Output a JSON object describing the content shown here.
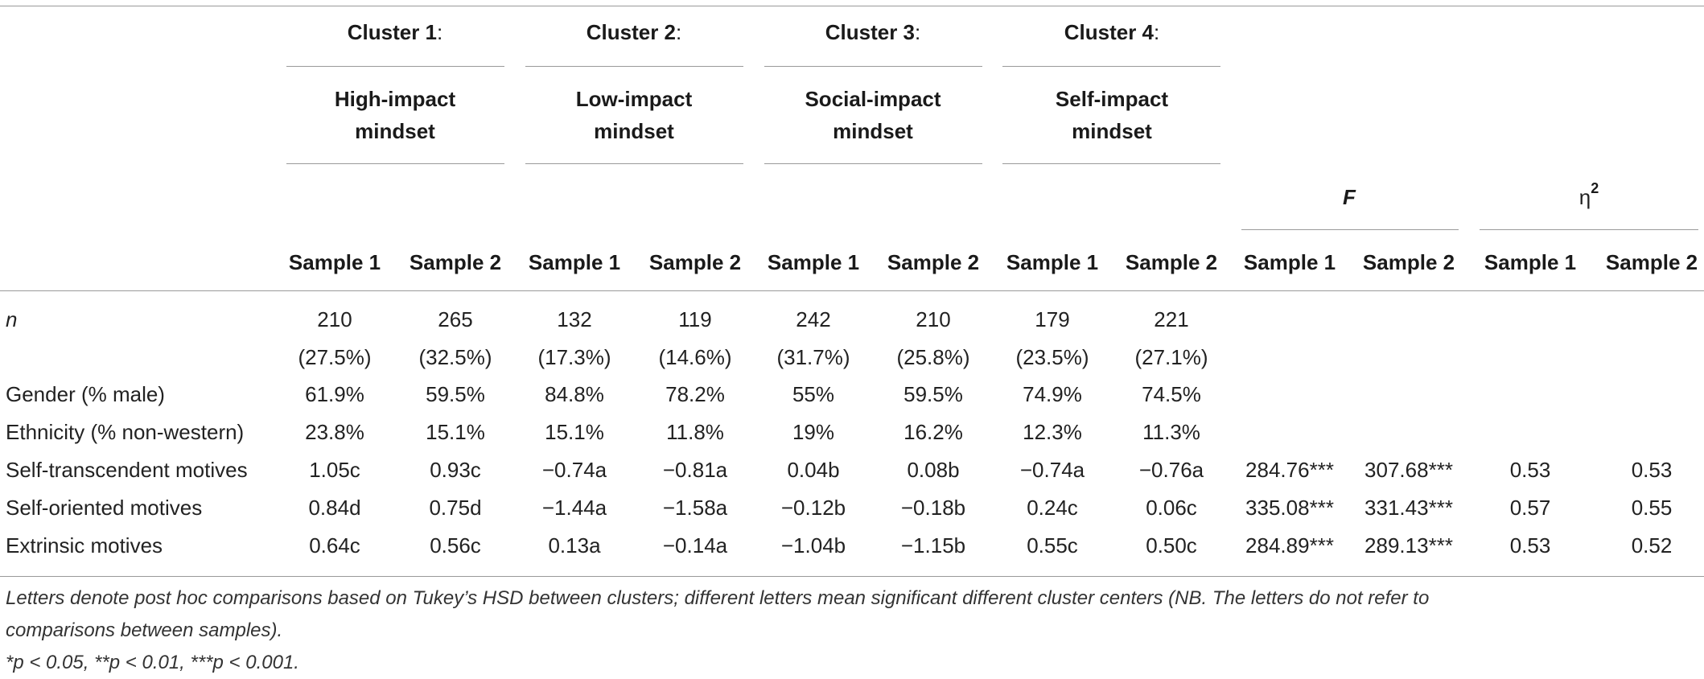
{
  "header": {
    "clusters": [
      {
        "number": "Cluster 1",
        "colon": ":",
        "name_line1": "High-impact",
        "name_line2": "mindset"
      },
      {
        "number": "Cluster 2",
        "colon": ":",
        "name_line1": "Low-impact",
        "name_line2": "mindset"
      },
      {
        "number": "Cluster 3",
        "colon": ":",
        "name_line1": "Social-impact",
        "name_line2": "mindset"
      },
      {
        "number": "Cluster 4",
        "colon": ":",
        "name_line1": "Self-impact",
        "name_line2": "mindset"
      }
    ],
    "stat_f": "F",
    "stat_eta": "η",
    "stat_eta_sup": "2",
    "sample_labels": [
      "Sample 1",
      "Sample 2",
      "Sample 1",
      "Sample 2",
      "Sample 1",
      "Sample 2",
      "Sample 1",
      "Sample 2",
      "Sample 1",
      "Sample 2",
      "Sample 1",
      "Sample 2"
    ]
  },
  "rows": {
    "n": {
      "label": "n",
      "counts": [
        "210",
        "265",
        "132",
        "119",
        "242",
        "210",
        "179",
        "221"
      ],
      "percents": [
        "(27.5%)",
        "(32.5%)",
        "(17.3%)",
        "(14.6%)",
        "(31.7%)",
        "(25.8%)",
        "(23.5%)",
        "(27.1%)"
      ]
    },
    "gender": {
      "label": "Gender (% male)",
      "values": [
        "61.9%",
        "59.5%",
        "84.8%",
        "78.2%",
        "55%",
        "59.5%",
        "74.9%",
        "74.5%"
      ]
    },
    "ethnicity": {
      "label": "Ethnicity (% non-western)",
      "values": [
        "23.8%",
        "15.1%",
        "15.1%",
        "11.8%",
        "19%",
        "16.2%",
        "12.3%",
        "11.3%"
      ]
    },
    "self_transcendent": {
      "label": "Self-transcendent motives",
      "values": [
        "1.05c",
        "0.93c",
        "−0.74a",
        "−0.81a",
        "0.04b",
        "0.08b",
        "−0.74a",
        "−0.76a"
      ],
      "f": [
        "284.76***",
        "307.68***"
      ],
      "eta": [
        "0.53",
        "0.53"
      ]
    },
    "self_oriented": {
      "label": "Self-oriented motives",
      "values": [
        "0.84d",
        "0.75d",
        "−1.44a",
        "−1.58a",
        "−0.12b",
        "−0.18b",
        "0.24c",
        "0.06c"
      ],
      "f": [
        "335.08***",
        "331.43***"
      ],
      "eta": [
        "0.57",
        "0.55"
      ]
    },
    "extrinsic": {
      "label": "Extrinsic motives",
      "values": [
        "0.64c",
        "0.56c",
        "0.13a",
        "−0.14a",
        "−1.04b",
        "−1.15b",
        "0.55c",
        "0.50c"
      ],
      "f": [
        "284.89***",
        "289.13***"
      ],
      "eta": [
        "0.53",
        "0.52"
      ]
    }
  },
  "footnote": {
    "line1": "Letters denote post hoc comparisons based on Tukey’s HSD between clusters; different letters mean significant different cluster centers (NB. The letters do not refer to",
    "line2": "comparisons between samples).",
    "line3": "*p < 0.05, **p < 0.01, ***p < 0.001."
  }
}
